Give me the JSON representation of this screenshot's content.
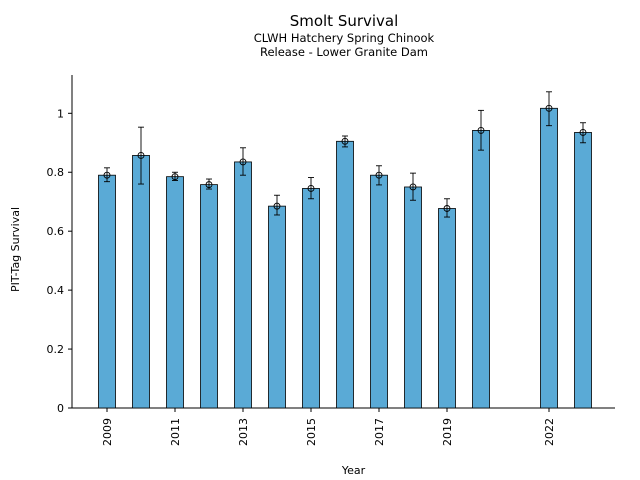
{
  "chart_data": {
    "type": "bar",
    "title": "Smolt Survival",
    "subtitle_lines": [
      "CLWH Hatchery Spring Chinook",
      "Release - Lower Granite Dam"
    ],
    "xlabel": "Year",
    "ylabel": "PIT-Tag Survival",
    "ylim": [
      0,
      1.13
    ],
    "yticks": [
      0,
      0.2,
      0.4,
      0.6,
      0.8,
      1
    ],
    "ytick_labels": [
      "0",
      "0.2",
      "0.4",
      "0.6",
      "0.8",
      "1"
    ],
    "xticks": [
      2009,
      2011,
      2013,
      2015,
      2017,
      2019,
      2022
    ],
    "xtick_labels": [
      "2009",
      "2011",
      "2013",
      "2015",
      "2017",
      "2019",
      "2022"
    ],
    "x": [
      2009,
      2010,
      2011,
      2012,
      2013,
      2014,
      2015,
      2016,
      2017,
      2018,
      2019,
      2020,
      2022,
      2023
    ],
    "values": [
      0.79,
      0.857,
      0.785,
      0.758,
      0.835,
      0.685,
      0.745,
      0.905,
      0.79,
      0.75,
      0.677,
      0.942,
      1.017,
      0.935
    ],
    "err_lower": [
      0.768,
      0.76,
      0.772,
      0.743,
      0.79,
      0.655,
      0.71,
      0.886,
      0.757,
      0.705,
      0.648,
      0.875,
      0.958,
      0.9
    ],
    "err_upper": [
      0.815,
      0.953,
      0.8,
      0.777,
      0.883,
      0.722,
      0.782,
      0.923,
      0.822,
      0.797,
      0.71,
      1.01,
      1.073,
      0.968
    ],
    "bar_color": "#5aaad6",
    "grid": false,
    "legend": "none"
  }
}
